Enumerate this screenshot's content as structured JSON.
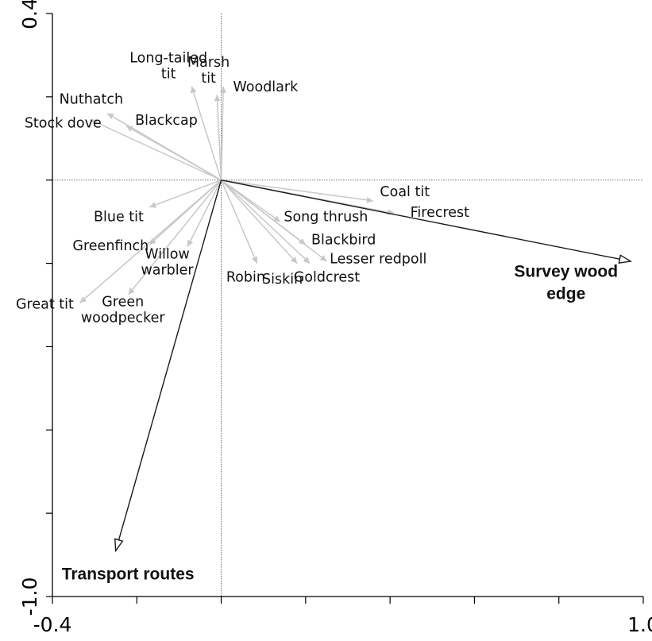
{
  "chart_data": {
    "type": "biplot",
    "xlim": [
      -0.4,
      1.0
    ],
    "ylim": [
      -1.0,
      0.4
    ],
    "x_tick_labels": [
      "-0.4",
      "1.0"
    ],
    "y_tick_labels": [
      "0.4",
      "-1.0"
    ],
    "x_minor_ticks": [
      -0.4,
      -0.2,
      0.0,
      0.2,
      0.4,
      0.6,
      0.8,
      1.0
    ],
    "y_minor_ticks": [
      0.4,
      0.2,
      0.0,
      -0.2,
      -0.4,
      -0.6,
      -0.8,
      -1.0
    ],
    "zero_lines": true,
    "species": [
      {
        "name": "Long-tailed tit",
        "x": -0.07,
        "y": 0.225
      },
      {
        "name": "Marsh tit",
        "x": -0.01,
        "y": 0.205
      },
      {
        "name": "Woodlark",
        "x": 0.005,
        "y": 0.225
      },
      {
        "name": "Nuthatch",
        "x": -0.27,
        "y": 0.16
      },
      {
        "name": "Stock dove",
        "x": -0.31,
        "y": 0.145
      },
      {
        "name": "Blackcap",
        "x": -0.225,
        "y": 0.13
      },
      {
        "name": "Coal tit",
        "x": 0.36,
        "y": -0.05
      },
      {
        "name": "Firecrest",
        "x": 0.41,
        "y": -0.08
      },
      {
        "name": "Song thrush",
        "x": 0.14,
        "y": -0.1
      },
      {
        "name": "Blackbird",
        "x": 0.2,
        "y": -0.155
      },
      {
        "name": "Lesser redpoll",
        "x": 0.25,
        "y": -0.195
      },
      {
        "name": "Goldcrest",
        "x": 0.21,
        "y": -0.2
      },
      {
        "name": "Siskin",
        "x": 0.18,
        "y": -0.2
      },
      {
        "name": "Robin",
        "x": 0.085,
        "y": -0.2
      },
      {
        "name": "Blue tit",
        "x": -0.17,
        "y": -0.065
      },
      {
        "name": "Greenfinch",
        "x": -0.17,
        "y": -0.155
      },
      {
        "name": "Willow warbler",
        "x": -0.08,
        "y": -0.16
      },
      {
        "name": "Great tit",
        "x": -0.335,
        "y": -0.295
      },
      {
        "name": "Green woodpecker",
        "x": -0.22,
        "y": -0.275
      }
    ],
    "environment": [
      {
        "name": "Survey wood edge",
        "x": 0.97,
        "y": -0.195
      },
      {
        "name": "Transport routes",
        "x": -0.25,
        "y": -0.89
      }
    ],
    "labels": [
      {
        "for": "Long-tailed tit",
        "lines": [
          "Long-tailed",
          "tit"
        ],
        "x": -0.125,
        "y": 0.275
      },
      {
        "for": "Marsh tit",
        "lines": [
          "Marsh",
          "tit"
        ],
        "x": -0.03,
        "y": 0.265
      },
      {
        "for": "Woodlark",
        "lines": [
          "Woodlark"
        ],
        "x": 0.105,
        "y": 0.225
      },
      {
        "for": "Nuthatch",
        "lines": [
          "Nuthatch"
        ],
        "x": -0.308,
        "y": 0.195
      },
      {
        "for": "Stock dove",
        "lines": [
          "Stock dove"
        ],
        "x": -0.375,
        "y": 0.138
      },
      {
        "for": "Blackcap",
        "lines": [
          "Blackcap"
        ],
        "x": -0.13,
        "y": 0.145
      },
      {
        "for": "Coal tit",
        "lines": [
          "Coal tit"
        ],
        "x": 0.435,
        "y": -0.027
      },
      {
        "for": "Firecrest",
        "lines": [
          "Firecrest"
        ],
        "x": 0.518,
        "y": -0.077
      },
      {
        "for": "Song thrush",
        "lines": [
          "Song thrush"
        ],
        "x": 0.248,
        "y": -0.087
      },
      {
        "for": "Blackbird",
        "lines": [
          "Blackbird"
        ],
        "x": 0.29,
        "y": -0.142
      },
      {
        "for": "Lesser redpoll",
        "lines": [
          "Lesser redpoll"
        ],
        "x": 0.372,
        "y": -0.188
      },
      {
        "for": "Goldcrest",
        "lines": [
          "Goldcrest"
        ],
        "x": 0.25,
        "y": -0.232
      },
      {
        "for": "Siskin",
        "lines": [
          "Siskin"
        ],
        "x": 0.145,
        "y": -0.237
      },
      {
        "for": "Robin",
        "lines": [
          "Robin"
        ],
        "x": 0.058,
        "y": -0.232
      },
      {
        "for": "Blue tit",
        "lines": [
          "Blue tit"
        ],
        "x": -0.243,
        "y": -0.087
      },
      {
        "for": "Greenfinch",
        "lines": [
          "Greenfinch"
        ],
        "x": -0.262,
        "y": -0.157
      },
      {
        "for": "Willow warbler",
        "lines": [
          "Willow",
          "warbler"
        ],
        "x": -0.128,
        "y": -0.196
      },
      {
        "for": "Great tit",
        "lines": [
          "Great tit"
        ],
        "x": -0.418,
        "y": -0.297
      },
      {
        "for": "Green woodpecker",
        "lines": [
          "Green",
          "woodpecker"
        ],
        "x": -0.233,
        "y": -0.31
      },
      {
        "for": "Survey wood edge",
        "lines": [
          "Survey wood",
          "edge"
        ],
        "x": 0.817,
        "y": -0.245,
        "bold": true
      },
      {
        "for": "Transport routes",
        "lines": [
          "Transport routes"
        ],
        "x": -0.221,
        "y": -0.945,
        "bold": true
      }
    ],
    "colors": {
      "species_arrow": "#c8c8c8",
      "environment_arrow": "#1a1a1a",
      "axis": "#000000",
      "text": "#111111"
    }
  }
}
